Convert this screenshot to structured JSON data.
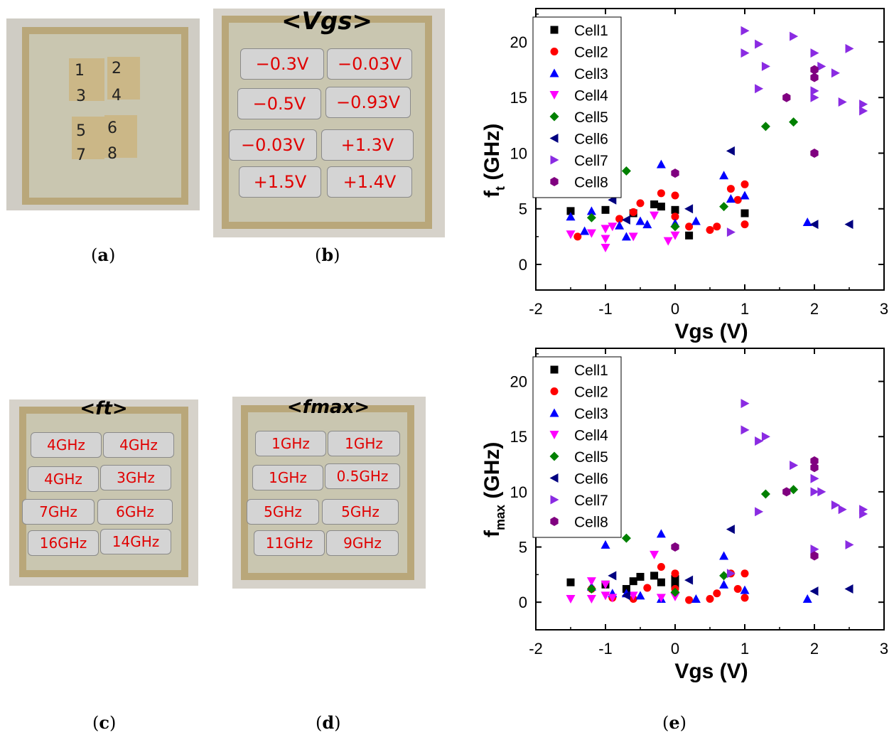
{
  "panel_a": {
    "cells": [
      "1",
      "2",
      "3",
      "4",
      "5",
      "6",
      "7",
      "8"
    ]
  },
  "panel_b": {
    "title": "<Vgs>",
    "values": [
      "−0.3V",
      "−0.03V",
      "−0.5V",
      "−0.93V",
      "−0.03V",
      "+1.3V",
      "+1.5V",
      "+1.4V"
    ]
  },
  "panel_c": {
    "title": "<ft>",
    "values": [
      "4GHz",
      "4GHz",
      "4GHz",
      "3GHz",
      "7GHz",
      "6GHz",
      "16GHz",
      "14GHz"
    ]
  },
  "panel_d": {
    "title": "<fmax>",
    "values": [
      "1GHz",
      "1GHz",
      "1GHz",
      "0.5GHz",
      "5GHz",
      "5GHz",
      "11GHz",
      "9GHz"
    ]
  },
  "captions": {
    "a": "a",
    "b": "b",
    "c": "c",
    "d": "d",
    "e": "e"
  },
  "colors": {
    "cell1": "#000000",
    "cell2": "#ff0000",
    "cell3": "#0000ff",
    "cell4": "#ff00ff",
    "cell5": "#008000",
    "cell6": "#000080",
    "cell7": "#8a2be2",
    "cell8": "#800080"
  },
  "chart_data": [
    {
      "type": "scatter",
      "title": "",
      "xlabel": "Vgs (V)",
      "ylabel_main": "f",
      "ylabel_sub": "t",
      "ylabel_unit": "(GHz)",
      "xlim": [
        -2,
        3
      ],
      "ylim": [
        -2.3,
        23
      ],
      "xticks": [
        "-2",
        "-1",
        "0",
        "1",
        "2",
        "3"
      ],
      "yticks": [
        "0",
        "5",
        "10",
        "15",
        "20"
      ],
      "legend_position": "top-left",
      "series": [
        {
          "name": "Cell1",
          "marker": "square",
          "color": "#000000",
          "points": [
            [
              -1.5,
              4.8
            ],
            [
              -1.0,
              4.9
            ],
            [
              -0.6,
              4.6
            ],
            [
              -0.3,
              5.4
            ],
            [
              -0.2,
              5.2
            ],
            [
              0,
              4.9
            ],
            [
              0.2,
              2.6
            ],
            [
              1.0,
              4.6
            ]
          ]
        },
        {
          "name": "Cell2",
          "marker": "circle",
          "color": "#ff0000",
          "points": [
            [
              -1.4,
              2.5
            ],
            [
              -0.8,
              4.1
            ],
            [
              -0.6,
              4.7
            ],
            [
              -0.5,
              5.5
            ],
            [
              -0.2,
              6.4
            ],
            [
              0,
              6.2
            ],
            [
              0,
              4.3
            ],
            [
              0.2,
              3.4
            ],
            [
              0.5,
              3.1
            ],
            [
              0.6,
              3.4
            ],
            [
              0.8,
              6.8
            ],
            [
              0.9,
              5.8
            ],
            [
              1.0,
              7.2
            ],
            [
              1.0,
              3.6
            ]
          ]
        },
        {
          "name": "Cell3",
          "marker": "triangle-up",
          "color": "#0000ff",
          "points": [
            [
              -1.5,
              4.3
            ],
            [
              -1.3,
              3.0
            ],
            [
              -1.2,
              4.8
            ],
            [
              -0.8,
              3.5
            ],
            [
              -0.7,
              2.5
            ],
            [
              -0.5,
              3.9
            ],
            [
              -0.4,
              3.6
            ],
            [
              -0.2,
              9.0
            ],
            [
              0,
              3.7
            ],
            [
              0.3,
              3.9
            ],
            [
              0.7,
              8.0
            ],
            [
              0.8,
              5.9
            ],
            [
              1.0,
              6.2
            ],
            [
              1.9,
              3.8
            ]
          ]
        },
        {
          "name": "Cell4",
          "marker": "triangle-down",
          "color": "#ff00ff",
          "points": [
            [
              -1.5,
              2.7
            ],
            [
              -1.2,
              2.8
            ],
            [
              -1.0,
              1.5
            ],
            [
              -1.0,
              2.3
            ],
            [
              -1.0,
              3.2
            ],
            [
              -0.9,
              3.4
            ],
            [
              -0.6,
              2.5
            ],
            [
              -0.3,
              4.4
            ],
            [
              -0.1,
              2.1
            ],
            [
              0,
              2.6
            ]
          ]
        },
        {
          "name": "Cell5",
          "marker": "diamond",
          "color": "#008000",
          "points": [
            [
              -1.2,
              4.2
            ],
            [
              -0.7,
              8.4
            ],
            [
              0,
              3.4
            ],
            [
              0.7,
              5.2
            ],
            [
              1.3,
              12.4
            ],
            [
              1.7,
              12.8
            ]
          ]
        },
        {
          "name": "Cell6",
          "marker": "triangle-left",
          "color": "#000080",
          "points": [
            [
              -0.9,
              5.8
            ],
            [
              -0.7,
              4.0
            ],
            [
              0.2,
              5.0
            ],
            [
              0.8,
              10.2
            ],
            [
              2.0,
              3.6
            ],
            [
              2.5,
              3.6
            ]
          ]
        },
        {
          "name": "Cell7",
          "marker": "triangle-right",
          "color": "#8a2be2",
          "points": [
            [
              0.8,
              2.9
            ],
            [
              1.0,
              21.0
            ],
            [
              1.0,
              19.0
            ],
            [
              1.2,
              19.8
            ],
            [
              1.2,
              15.8
            ],
            [
              1.3,
              17.8
            ],
            [
              1.7,
              20.5
            ],
            [
              2.0,
              19.0
            ],
            [
              2.0,
              15.6
            ],
            [
              2.0,
              15.0
            ],
            [
              2.1,
              17.8
            ],
            [
              2.3,
              17.2
            ],
            [
              2.4,
              14.6
            ],
            [
              2.5,
              19.4
            ],
            [
              2.7,
              14.4
            ],
            [
              2.7,
              13.8
            ]
          ]
        },
        {
          "name": "Cell8",
          "marker": "hexagon",
          "color": "#800080",
          "points": [
            [
              0,
              8.2
            ],
            [
              1.6,
              15.0
            ],
            [
              2.0,
              17.5
            ],
            [
              2.0,
              16.8
            ],
            [
              2.0,
              10.0
            ]
          ]
        }
      ]
    },
    {
      "type": "scatter",
      "title": "",
      "xlabel": "Vgs (V)",
      "ylabel_main": "f",
      "ylabel_sub": "max",
      "ylabel_unit": "(GHz)",
      "xlim": [
        -2,
        3
      ],
      "ylim": [
        -2.5,
        23
      ],
      "xticks": [
        "-2",
        "-1",
        "0",
        "1",
        "2",
        "3"
      ],
      "yticks": [
        "0",
        "5",
        "10",
        "15",
        "20"
      ],
      "legend_position": "top-left",
      "series": [
        {
          "name": "Cell1",
          "marker": "square",
          "color": "#000000",
          "points": [
            [
              -1.5,
              1.8
            ],
            [
              -1.0,
              1.6
            ],
            [
              -0.7,
              1.2
            ],
            [
              -0.6,
              1.9
            ],
            [
              -0.5,
              2.3
            ],
            [
              -0.3,
              2.4
            ],
            [
              -0.2,
              1.8
            ],
            [
              0,
              1.5
            ],
            [
              0,
              2.1
            ]
          ]
        },
        {
          "name": "Cell2",
          "marker": "circle",
          "color": "#ff0000",
          "points": [
            [
              -1.2,
              1.2
            ],
            [
              -0.9,
              0.4
            ],
            [
              -0.6,
              0.3
            ],
            [
              -0.4,
              1.3
            ],
            [
              -0.2,
              3.2
            ],
            [
              0,
              2.6
            ],
            [
              0,
              1.2
            ],
            [
              0.2,
              0.2
            ],
            [
              0.5,
              0.3
            ],
            [
              0.6,
              0.8
            ],
            [
              0.8,
              2.6
            ],
            [
              0.9,
              1.2
            ],
            [
              1.0,
              2.6
            ],
            [
              1.0,
              0.4
            ]
          ]
        },
        {
          "name": "Cell3",
          "marker": "triangle-up",
          "color": "#0000ff",
          "points": [
            [
              -1.2,
              1.4
            ],
            [
              -1.0,
              5.2
            ],
            [
              -0.9,
              0.8
            ],
            [
              -0.7,
              0.8
            ],
            [
              -0.5,
              0.6
            ],
            [
              -0.2,
              6.2
            ],
            [
              -0.2,
              0.3
            ],
            [
              0.3,
              0.3
            ],
            [
              0.7,
              4.2
            ],
            [
              0.7,
              1.6
            ],
            [
              1.0,
              1.1
            ],
            [
              1.9,
              0.3
            ]
          ]
        },
        {
          "name": "Cell4",
          "marker": "triangle-down",
          "color": "#ff00ff",
          "points": [
            [
              -1.5,
              0.3
            ],
            [
              -1.2,
              1.9
            ],
            [
              -1.2,
              0.3
            ],
            [
              -1.0,
              0.6
            ],
            [
              -1.0,
              1.6
            ],
            [
              -0.9,
              0.4
            ],
            [
              -0.6,
              0.6
            ],
            [
              -0.3,
              4.3
            ],
            [
              -0.2,
              0.4
            ],
            [
              0,
              0.5
            ]
          ]
        },
        {
          "name": "Cell5",
          "marker": "diamond",
          "color": "#008000",
          "points": [
            [
              -1.2,
              1.2
            ],
            [
              -0.7,
              5.8
            ],
            [
              0,
              0.9
            ],
            [
              0.7,
              2.4
            ],
            [
              1.3,
              9.8
            ],
            [
              1.7,
              10.2
            ]
          ]
        },
        {
          "name": "Cell6",
          "marker": "triangle-left",
          "color": "#000080",
          "points": [
            [
              -0.9,
              2.4
            ],
            [
              -0.7,
              0.6
            ],
            [
              0.2,
              2.0
            ],
            [
              0.8,
              6.6
            ],
            [
              2.0,
              1.0
            ],
            [
              2.5,
              1.2
            ]
          ]
        },
        {
          "name": "Cell7",
          "marker": "triangle-right",
          "color": "#8a2be2",
          "points": [
            [
              0.8,
              2.6
            ],
            [
              1.0,
              18.0
            ],
            [
              1.0,
              15.6
            ],
            [
              1.2,
              14.6
            ],
            [
              1.2,
              8.2
            ],
            [
              1.3,
              15.0
            ],
            [
              1.7,
              12.4
            ],
            [
              2.0,
              11.2
            ],
            [
              2.0,
              10.0
            ],
            [
              2.0,
              4.8
            ],
            [
              2.1,
              10.0
            ],
            [
              2.3,
              8.8
            ],
            [
              2.4,
              8.4
            ],
            [
              2.5,
              5.2
            ],
            [
              2.7,
              8.4
            ],
            [
              2.7,
              8.0
            ]
          ]
        },
        {
          "name": "Cell8",
          "marker": "hexagon",
          "color": "#800080",
          "points": [
            [
              0,
              5.0
            ],
            [
              1.6,
              10.0
            ],
            [
              2.0,
              12.8
            ],
            [
              2.0,
              12.2
            ],
            [
              2.0,
              4.2
            ]
          ]
        }
      ]
    }
  ]
}
